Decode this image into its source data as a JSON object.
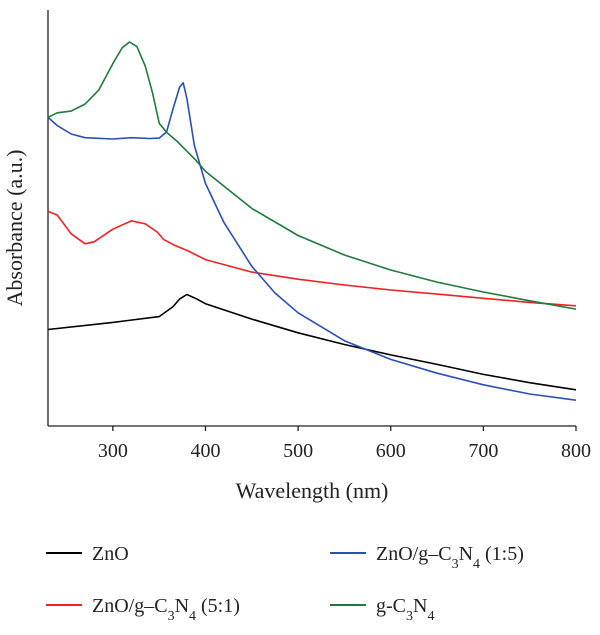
{
  "chart_data": {
    "type": "line",
    "xlabel": "Wavelength (nm)",
    "ylabel": "Absorbance (a.u.)",
    "xlim": [
      230,
      800
    ],
    "ylim": [
      0,
      1
    ],
    "x_ticks": [
      300,
      400,
      500,
      600,
      700,
      800
    ],
    "y_ticks_shown": false,
    "grid": false,
    "legend_position": "bottom",
    "series": [
      {
        "name": "ZnO",
        "label_parts": [
          {
            "t": "ZnO"
          }
        ],
        "color": "#000000",
        "points": [
          [
            230,
            0.232
          ],
          [
            300,
            0.249
          ],
          [
            350,
            0.263
          ],
          [
            365,
            0.287
          ],
          [
            372,
            0.305
          ],
          [
            380,
            0.316
          ],
          [
            390,
            0.306
          ],
          [
            400,
            0.294
          ],
          [
            450,
            0.257
          ],
          [
            500,
            0.224
          ],
          [
            550,
            0.196
          ],
          [
            600,
            0.171
          ],
          [
            650,
            0.148
          ],
          [
            700,
            0.124
          ],
          [
            750,
            0.104
          ],
          [
            800,
            0.087
          ]
        ]
      },
      {
        "name": "ZnO/g–C3N4 (5:1)",
        "label_parts": [
          {
            "t": "ZnO/g–C"
          },
          {
            "t": "3",
            "sub": true
          },
          {
            "t": "N"
          },
          {
            "t": "4",
            "sub": true
          },
          {
            "t": " (5:1)"
          }
        ],
        "color": "#ee2222",
        "points": [
          [
            230,
            0.516
          ],
          [
            240,
            0.507
          ],
          [
            255,
            0.462
          ],
          [
            270,
            0.438
          ],
          [
            280,
            0.443
          ],
          [
            300,
            0.473
          ],
          [
            320,
            0.493
          ],
          [
            335,
            0.486
          ],
          [
            348,
            0.466
          ],
          [
            355,
            0.448
          ],
          [
            365,
            0.436
          ],
          [
            380,
            0.422
          ],
          [
            400,
            0.4
          ],
          [
            450,
            0.37
          ],
          [
            500,
            0.353
          ],
          [
            550,
            0.339
          ],
          [
            600,
            0.327
          ],
          [
            650,
            0.317
          ],
          [
            700,
            0.307
          ],
          [
            750,
            0.297
          ],
          [
            800,
            0.289
          ]
        ]
      },
      {
        "name": "ZnO/g–C3N4 (1:5)",
        "label_parts": [
          {
            "t": "ZnO/g–C"
          },
          {
            "t": "3",
            "sub": true
          },
          {
            "t": "N"
          },
          {
            "t": "4",
            "sub": true
          },
          {
            "t": " (1:5)"
          }
        ],
        "color": "#2b4fb5",
        "points": [
          [
            230,
            0.742
          ],
          [
            240,
            0.722
          ],
          [
            255,
            0.702
          ],
          [
            270,
            0.693
          ],
          [
            300,
            0.69
          ],
          [
            320,
            0.693
          ],
          [
            340,
            0.691
          ],
          [
            350,
            0.692
          ],
          [
            358,
            0.707
          ],
          [
            365,
            0.763
          ],
          [
            372,
            0.814
          ],
          [
            376,
            0.825
          ],
          [
            380,
            0.787
          ],
          [
            388,
            0.674
          ],
          [
            400,
            0.583
          ],
          [
            420,
            0.489
          ],
          [
            450,
            0.384
          ],
          [
            475,
            0.32
          ],
          [
            500,
            0.272
          ],
          [
            550,
            0.205
          ],
          [
            600,
            0.16
          ],
          [
            650,
            0.127
          ],
          [
            700,
            0.099
          ],
          [
            750,
            0.077
          ],
          [
            800,
            0.062
          ]
        ]
      },
      {
        "name": "g-C3N4",
        "label_parts": [
          {
            "t": "g-C"
          },
          {
            "t": "3",
            "sub": true
          },
          {
            "t": "N"
          },
          {
            "t": "4",
            "sub": true
          }
        ],
        "color": "#1e7a3d",
        "points": [
          [
            230,
            0.742
          ],
          [
            240,
            0.753
          ],
          [
            255,
            0.757
          ],
          [
            270,
            0.774
          ],
          [
            285,
            0.808
          ],
          [
            300,
            0.871
          ],
          [
            310,
            0.909
          ],
          [
            318,
            0.923
          ],
          [
            326,
            0.912
          ],
          [
            335,
            0.865
          ],
          [
            343,
            0.799
          ],
          [
            350,
            0.728
          ],
          [
            358,
            0.706
          ],
          [
            370,
            0.683
          ],
          [
            390,
            0.638
          ],
          [
            400,
            0.612
          ],
          [
            450,
            0.523
          ],
          [
            500,
            0.458
          ],
          [
            550,
            0.411
          ],
          [
            600,
            0.375
          ],
          [
            650,
            0.346
          ],
          [
            700,
            0.322
          ],
          [
            750,
            0.301
          ],
          [
            800,
            0.281
          ]
        ]
      }
    ],
    "legend_layout": [
      {
        "series": 0,
        "col": 0,
        "row": 0
      },
      {
        "series": 2,
        "col": 1,
        "row": 0
      },
      {
        "series": 1,
        "col": 0,
        "row": 1
      },
      {
        "series": 3,
        "col": 1,
        "row": 1
      }
    ]
  }
}
